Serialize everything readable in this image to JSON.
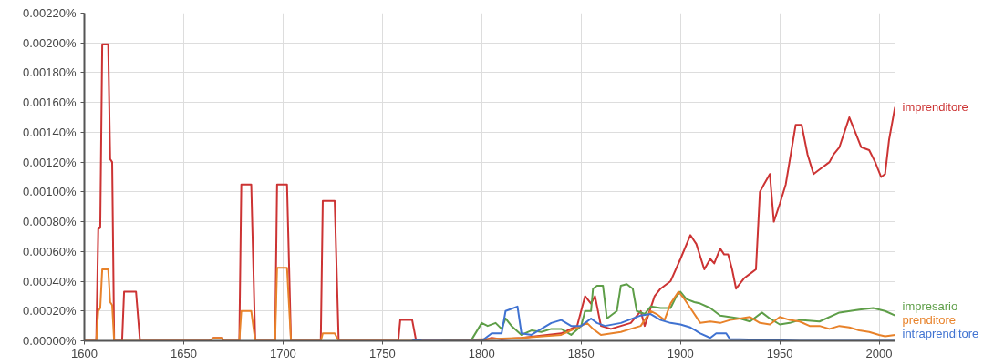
{
  "chart_data": {
    "type": "line",
    "xlim": [
      1600,
      2008
    ],
    "xticks": [
      1600,
      1650,
      1700,
      1750,
      1800,
      1850,
      1900,
      1950,
      2000
    ],
    "ylim": [
      0,
      0.0022
    ],
    "yticks": [
      {
        "value": 0,
        "label": "0.00000%"
      },
      {
        "value": 0.0002,
        "label": "0.00020%"
      },
      {
        "value": 0.0004,
        "label": "0.00040%"
      },
      {
        "value": 0.0006,
        "label": "0.00060%"
      },
      {
        "value": 0.0008,
        "label": "0.00080%"
      },
      {
        "value": 0.001,
        "label": "0.00100%"
      },
      {
        "value": 0.0012,
        "label": "0.00120%"
      },
      {
        "value": 0.0014,
        "label": "0.00140%"
      },
      {
        "value": 0.0016,
        "label": "0.00160%"
      },
      {
        "value": 0.0018,
        "label": "0.00180%"
      },
      {
        "value": 0.002,
        "label": "0.00200%"
      },
      {
        "value": 0.0022,
        "label": "0.00220%"
      }
    ],
    "grid": true,
    "legend": false,
    "marker": "none",
    "line_style": "solid",
    "series": [
      {
        "name": "imprenditore",
        "color": "#cc3333",
        "x": [
          1600,
          1606,
          1607,
          1608,
          1609,
          1612,
          1613,
          1614,
          1615,
          1619,
          1620,
          1626,
          1628,
          1663,
          1665,
          1669,
          1670,
          1678,
          1679,
          1684,
          1686,
          1696,
          1697,
          1702,
          1704,
          1719,
          1720,
          1726,
          1728,
          1758,
          1759,
          1765,
          1767,
          1800,
          1805,
          1810,
          1820,
          1840,
          1848,
          1852,
          1855,
          1857,
          1860,
          1865,
          1870,
          1875,
          1880,
          1882,
          1887,
          1890,
          1895,
          1900,
          1905,
          1908,
          1912,
          1915,
          1917,
          1920,
          1922,
          1924,
          1926,
          1928,
          1932,
          1935,
          1938,
          1940,
          1942,
          1945,
          1947,
          1950,
          1953,
          1958,
          1961,
          1964,
          1967,
          1970,
          1975,
          1977,
          1980,
          1983,
          1985,
          1988,
          1991,
          1995,
          1998,
          2001,
          2003,
          2005,
          2008
        ],
        "values": [
          0,
          0,
          0.00075,
          0.00076,
          0.00199,
          0.00199,
          0.00122,
          0.0012,
          0,
          0,
          0.00033,
          0.00033,
          0,
          0,
          2e-05,
          2e-05,
          0,
          0,
          0.00105,
          0.00105,
          0,
          0,
          0.00105,
          0.00105,
          0,
          0,
          0.00094,
          0.00094,
          0,
          0,
          0.00014,
          0.00014,
          0,
          0,
          2e-05,
          1e-05,
          2e-05,
          5e-05,
          0.0001,
          0.0003,
          0.00025,
          0.0003,
          0.0001,
          8e-05,
          0.0001,
          0.00012,
          0.0002,
          0.0001,
          0.0003,
          0.00035,
          0.0004,
          0.00055,
          0.00071,
          0.00065,
          0.00048,
          0.00055,
          0.00052,
          0.00062,
          0.00058,
          0.00058,
          0.00048,
          0.00035,
          0.00042,
          0.00045,
          0.00048,
          0.001,
          0.00105,
          0.00112,
          0.0008,
          0.00092,
          0.00105,
          0.00145,
          0.00145,
          0.00125,
          0.00112,
          0.00115,
          0.0012,
          0.00125,
          0.0013,
          0.00142,
          0.0015,
          0.0014,
          0.0013,
          0.00128,
          0.0012,
          0.0011,
          0.00112,
          0.00135,
          0.00157
        ]
      },
      {
        "name": "impresario",
        "color": "#5e9e48",
        "x": [
          1780,
          1795,
          1800,
          1803,
          1807,
          1810,
          1812,
          1815,
          1820,
          1825,
          1830,
          1835,
          1840,
          1845,
          1850,
          1852,
          1855,
          1856,
          1858,
          1861,
          1863,
          1866,
          1868,
          1870,
          1873,
          1876,
          1878,
          1882,
          1885,
          1890,
          1895,
          1898,
          1900,
          1903,
          1907,
          1910,
          1915,
          1920,
          1930,
          1935,
          1941,
          1945,
          1950,
          1955,
          1960,
          1970,
          1980,
          1990,
          1997,
          2003,
          2008
        ],
        "values": [
          0,
          1e-05,
          0.00012,
          0.0001,
          0.00012,
          8e-05,
          0.00015,
          0.0001,
          4e-05,
          7e-05,
          6e-05,
          8e-05,
          8e-05,
          4e-05,
          0.0001,
          0.0002,
          0.0002,
          0.00035,
          0.00037,
          0.00037,
          0.00015,
          0.00018,
          0.0002,
          0.00037,
          0.00038,
          0.00035,
          0.0002,
          0.00018,
          0.00023,
          0.00022,
          0.00022,
          0.0003,
          0.00033,
          0.00028,
          0.00026,
          0.00025,
          0.00022,
          0.00017,
          0.00015,
          0.00013,
          0.00019,
          0.00015,
          0.00011,
          0.00012,
          0.00014,
          0.00013,
          0.00019,
          0.00021,
          0.00022,
          0.0002,
          0.00017
        ]
      },
      {
        "name": "prenditore",
        "color": "#e8822a",
        "x": [
          1600,
          1606,
          1607,
          1608,
          1609,
          1612,
          1613,
          1614,
          1615,
          1663,
          1665,
          1669,
          1670,
          1678,
          1679,
          1684,
          1686,
          1696,
          1697,
          1702,
          1704,
          1719,
          1720,
          1726,
          1728,
          1780,
          1800,
          1820,
          1840,
          1850,
          1853,
          1856,
          1860,
          1870,
          1875,
          1880,
          1885,
          1888,
          1892,
          1895,
          1899,
          1902,
          1906,
          1910,
          1915,
          1920,
          1925,
          1930,
          1935,
          1940,
          1945,
          1950,
          1955,
          1960,
          1965,
          1970,
          1975,
          1980,
          1985,
          1990,
          1995,
          2000,
          2003,
          2008
        ],
        "values": [
          0,
          0,
          0.0002,
          0.00022,
          0.00048,
          0.00048,
          0.00026,
          0.00024,
          0,
          0,
          2e-05,
          2e-05,
          0,
          0,
          0.0002,
          0.0002,
          0,
          0,
          0.00049,
          0.00049,
          0,
          0,
          5e-05,
          5e-05,
          0,
          0,
          1e-05,
          2e-05,
          4e-05,
          0.0001,
          0.00012,
          8e-05,
          4e-05,
          6e-05,
          8e-05,
          0.0001,
          0.0002,
          0.00018,
          0.00014,
          0.00025,
          0.00033,
          0.00028,
          0.0002,
          0.00012,
          0.00013,
          0.00012,
          0.00014,
          0.00015,
          0.00016,
          0.00012,
          0.00011,
          0.00016,
          0.00014,
          0.00013,
          0.0001,
          0.0001,
          8e-05,
          0.0001,
          9e-05,
          7e-05,
          6e-05,
          4e-05,
          3e-05,
          4e-05
        ]
      },
      {
        "name": "intraprenditore",
        "color": "#3f72d1",
        "x": [
          1765,
          1767,
          1770,
          1800,
          1805,
          1810,
          1812,
          1818,
          1820,
          1825,
          1830,
          1835,
          1840,
          1845,
          1850,
          1855,
          1858,
          1862,
          1870,
          1880,
          1885,
          1890,
          1895,
          1900,
          1905,
          1910,
          1915,
          1918,
          1923,
          1925,
          1930,
          1960,
          2008
        ],
        "values": [
          0,
          1e-05,
          0,
          0,
          5e-05,
          5e-05,
          0.0002,
          0.00023,
          5e-05,
          4e-05,
          8e-05,
          0.00012,
          0.00014,
          0.0001,
          0.0001,
          0.00015,
          0.00012,
          0.0001,
          0.00012,
          0.00017,
          0.00018,
          0.00014,
          0.00012,
          0.00011,
          9e-05,
          5e-05,
          2e-05,
          5e-05,
          5e-05,
          1e-05,
          1e-05,
          0,
          0
        ]
      }
    ]
  }
}
